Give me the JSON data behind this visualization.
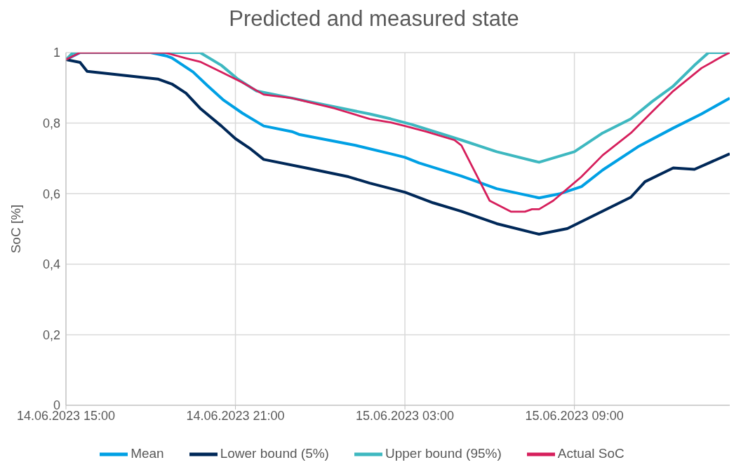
{
  "chart_data": {
    "type": "line",
    "title": "Predicted and measured state",
    "ylabel": "SoC [%]",
    "xlim": [
      "2023-06-14T15:00",
      "2023-06-15T14:30"
    ],
    "xticks": [
      {
        "value": "2023-06-14T15:00",
        "label": "14.06.2023 15:00"
      },
      {
        "value": "2023-06-14T21:00",
        "label": "14.06.2023 21:00"
      },
      {
        "value": "2023-06-15T03:00",
        "label": "15.06.2023 03:00"
      },
      {
        "value": "2023-06-15T09:00",
        "label": "15.06.2023 09:00"
      }
    ],
    "ylim": [
      0,
      1
    ],
    "yticks": [
      0,
      {
        "value": 0.2,
        "label": "0,2"
      },
      {
        "value": 0.4,
        "label": "0,4"
      },
      {
        "value": 0.6,
        "label": "0,6"
      },
      {
        "value": 0.8,
        "label": "0,8"
      },
      1
    ],
    "grid": true,
    "legend": "bottom",
    "marker": "none",
    "line_style": "solid",
    "series": [
      {
        "name": "Mean",
        "color": "#00a0e4",
        "x": [
          "2023-06-14T15:00",
          "2023-06-14T15:30",
          "2023-06-14T18:00",
          "2023-06-14T18:35",
          "2023-06-14T18:45",
          "2023-06-14T19:30",
          "2023-06-14T20:00",
          "2023-06-14T20:35",
          "2023-06-14T21:15",
          "2023-06-14T22:00",
          "2023-06-14T23:00",
          "2023-06-14T23:15",
          "2023-06-15T01:15",
          "2023-06-15T02:30",
          "2023-06-15T03:00",
          "2023-06-15T03:30",
          "2023-06-15T05:00",
          "2023-06-15T06:15",
          "2023-06-15T07:45",
          "2023-06-15T08:30",
          "2023-06-15T09:15",
          "2023-06-15T10:00",
          "2023-06-15T11:15",
          "2023-06-15T12:30",
          "2023-06-15T13:30",
          "2023-06-15T14:30"
        ],
        "values": [
          0.98,
          1.0,
          1.0,
          0.99,
          0.985,
          0.945,
          0.907,
          0.865,
          0.828,
          0.792,
          0.776,
          0.768,
          0.737,
          0.713,
          0.703,
          0.687,
          0.65,
          0.614,
          0.588,
          0.6,
          0.62,
          0.667,
          0.733,
          0.786,
          0.826,
          0.871
        ]
      },
      {
        "name": "Lower bound (5%)",
        "color": "#002858",
        "x": [
          "2023-06-14T15:00",
          "2023-06-14T15:30",
          "2023-06-14T15:45",
          "2023-06-14T18:15",
          "2023-06-14T18:45",
          "2023-06-14T19:15",
          "2023-06-14T19:45",
          "2023-06-14T20:30",
          "2023-06-14T21:00",
          "2023-06-14T21:30",
          "2023-06-14T22:00",
          "2023-06-14T23:30",
          "2023-06-15T01:00",
          "2023-06-15T01:45",
          "2023-06-15T03:00",
          "2023-06-15T04:00",
          "2023-06-15T05:00",
          "2023-06-15T06:15",
          "2023-06-15T07:45",
          "2023-06-15T08:45",
          "2023-06-15T11:00",
          "2023-06-15T11:30",
          "2023-06-15T12:30",
          "2023-06-15T13:15",
          "2023-06-15T14:30"
        ],
        "values": [
          0.98,
          0.972,
          0.947,
          0.925,
          0.911,
          0.885,
          0.842,
          0.792,
          0.756,
          0.729,
          0.697,
          0.673,
          0.648,
          0.63,
          0.604,
          0.574,
          0.55,
          0.515,
          0.485,
          0.501,
          0.59,
          0.634,
          0.673,
          0.669,
          0.713
        ]
      },
      {
        "name": "Upper bound (95%)",
        "color": "#3eb8c0",
        "x": [
          "2023-06-14T15:00",
          "2023-06-14T15:15",
          "2023-06-14T19:45",
          "2023-06-14T20:30",
          "2023-06-14T21:05",
          "2023-06-14T21:45",
          "2023-06-14T23:00",
          "2023-06-15T01:45",
          "2023-06-15T02:30",
          "2023-06-15T03:15",
          "2023-06-15T05:00",
          "2023-06-15T06:15",
          "2023-06-15T07:45",
          "2023-06-15T09:00",
          "2023-06-15T10:00",
          "2023-06-15T11:00",
          "2023-06-15T11:45",
          "2023-06-15T12:30",
          "2023-06-15T13:15",
          "2023-06-15T13:45",
          "2023-06-15T14:30"
        ],
        "values": [
          0.98,
          1.0,
          1.0,
          0.964,
          0.925,
          0.891,
          0.871,
          0.826,
          0.812,
          0.796,
          0.752,
          0.719,
          0.689,
          0.719,
          0.772,
          0.812,
          0.861,
          0.905,
          0.964,
          1.0,
          1.0
        ]
      },
      {
        "name": "Actual SoC",
        "color": "#d61f5c",
        "x": [
          "2023-06-14T15:00",
          "2023-06-14T15:30",
          "2023-06-14T18:30",
          "2023-06-14T19:15",
          "2023-06-14T19:45",
          "2023-06-14T20:30",
          "2023-06-14T21:15",
          "2023-06-14T22:00",
          "2023-06-14T23:00",
          "2023-06-15T00:30",
          "2023-06-15T01:45",
          "2023-06-15T02:30",
          "2023-06-15T03:00",
          "2023-06-15T03:45",
          "2023-06-15T04:45",
          "2023-06-15T05:00",
          "2023-06-15T06:00",
          "2023-06-15T06:45",
          "2023-06-15T07:15",
          "2023-06-15T07:30",
          "2023-06-15T07:45",
          "2023-06-15T08:15",
          "2023-06-15T09:15",
          "2023-06-15T10:00",
          "2023-06-15T11:00",
          "2023-06-15T11:45",
          "2023-06-15T12:30",
          "2023-06-15T13:30",
          "2023-06-15T14:15",
          "2023-06-15T14:30"
        ],
        "values": [
          0.98,
          1.0,
          1.0,
          0.984,
          0.974,
          0.945,
          0.915,
          0.881,
          0.871,
          0.842,
          0.812,
          0.802,
          0.792,
          0.776,
          0.752,
          0.737,
          0.58,
          0.549,
          0.549,
          0.556,
          0.556,
          0.58,
          0.648,
          0.709,
          0.772,
          0.832,
          0.891,
          0.956,
          0.99,
          1.0
        ]
      }
    ]
  }
}
